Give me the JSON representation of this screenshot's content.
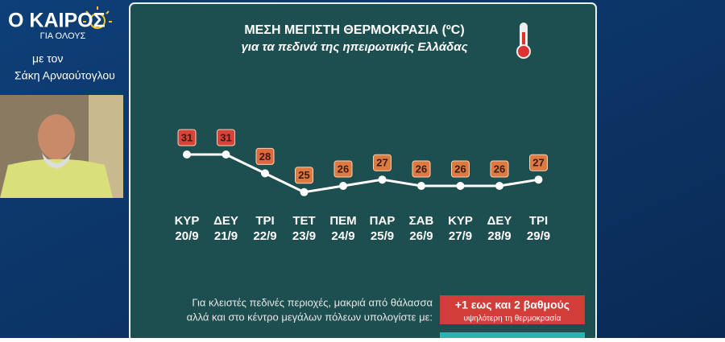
{
  "logo": {
    "title": "Ο ΚΑΙΡΟΣ",
    "tagline": "ΓΙΑ ΟΛΟΥΣ"
  },
  "presenter": {
    "intro": "με τον",
    "name": "Σάκη Αρναούτογλου"
  },
  "chart_data": {
    "type": "line",
    "title": "ΜΕΣΗ ΜΕΓΙΣΤΗ ΘΕΡΜΟΚΡΑΣΙΑ (ºC)",
    "subtitle": "για τα πεδινά της ηπειρωτικής Ελλάδας",
    "categories": [
      "ΚΥΡ",
      "ΔΕΥ",
      "ΤΡΙ",
      "ΤΕΤ",
      "ΠΕΜ",
      "ΠΑΡ",
      "ΣΑΒ",
      "ΚΥΡ",
      "ΔΕΥ",
      "ΤΡΙ"
    ],
    "dates": [
      "20/9",
      "21/9",
      "22/9",
      "23/9",
      "24/9",
      "25/9",
      "26/9",
      "27/9",
      "28/9",
      "29/9"
    ],
    "values": [
      31,
      31,
      28,
      25,
      26,
      27,
      26,
      26,
      26,
      27
    ],
    "color": "#ffffff",
    "label_colors": [
      "#d8423a",
      "#d8423a",
      "#e0683f",
      "#de7a40",
      "#de7a40",
      "#de7a40",
      "#de7a40",
      "#de7a40",
      "#de7a40",
      "#de7a40"
    ]
  },
  "note": {
    "lines": [
      "Για κλειστές πεδινές περιοχές, μακριά από θάλασσα",
      "αλλά και στο κέντρο μεγάλων πόλεων υπολογίστε με:"
    ],
    "badge": "+1 εως και 2 βαθμούς",
    "badge_sub": "υψηλότερη τη θερμοκρασία"
  }
}
